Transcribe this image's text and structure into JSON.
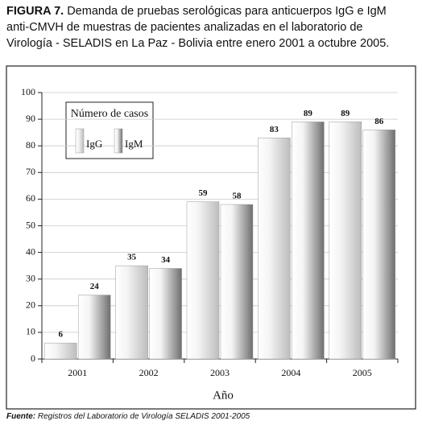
{
  "figure_label": "FIGURA 7.",
  "caption_lines": [
    "Demanda de pruebas serológicas para anticuerpos IgG e IgM",
    "anti-CMVH de muestras de pacientes analizadas en el laboratorio de",
    "Virología - SELADIS en La Paz - Bolivia entre enero 2001 a octubre 2005."
  ],
  "source_label": "Fuente:",
  "source_text": "Registros del Laboratorio de Virología SELADIS 2001-2005",
  "chart_data": {
    "type": "bar",
    "x_label": "Año",
    "legend_title": "Número de casos",
    "categories": [
      "2001",
      "2002",
      "2003",
      "2004",
      "2005"
    ],
    "series": [
      {
        "name": "IgG",
        "color": "#bdbdbd",
        "values": [
          6,
          35,
          59,
          83,
          89
        ]
      },
      {
        "name": "IgM",
        "color": "#6e6e6e",
        "values": [
          24,
          34,
          58,
          89,
          86
        ]
      }
    ],
    "ylim": [
      0,
      100
    ],
    "yticks": [
      0,
      10,
      20,
      30,
      40,
      50,
      60,
      70,
      80,
      90,
      100
    ],
    "grid": true
  }
}
